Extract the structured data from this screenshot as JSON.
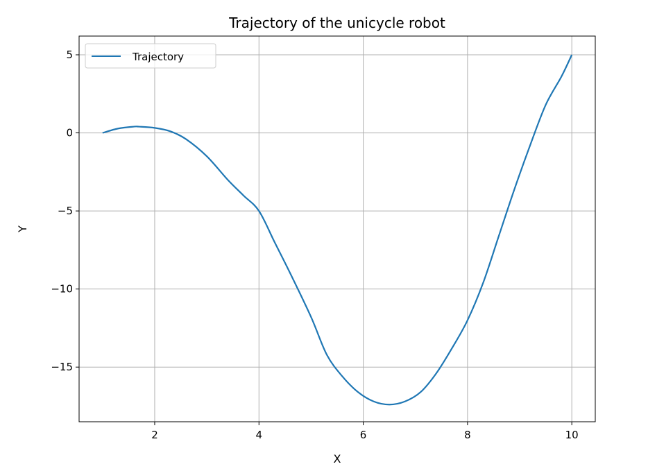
{
  "chart_data": {
    "type": "line",
    "title": "Trajectory of the unicycle robot",
    "xlabel": "X",
    "ylabel": "Y",
    "xlim": [
      0.55,
      10.45
    ],
    "ylim": [
      -18.5,
      6.2
    ],
    "xticks": [
      2,
      4,
      6,
      8,
      10
    ],
    "yticks": [
      5,
      0,
      -5,
      -10,
      -15
    ],
    "xtick_labels": [
      "2",
      "4",
      "6",
      "8",
      "10"
    ],
    "ytick_labels": [
      "5",
      "0",
      "−5",
      "−10",
      "−15"
    ],
    "grid": true,
    "legend_position": "top-left",
    "series": [
      {
        "name": "Trajectory",
        "color": "#1f77b4",
        "x": [
          1.0,
          1.3,
          1.6,
          1.7,
          2.0,
          2.3,
          2.6,
          3.0,
          3.4,
          3.7,
          4.0,
          4.3,
          4.6,
          5.0,
          5.3,
          5.6,
          5.9,
          6.2,
          6.5,
          6.8,
          7.1,
          7.4,
          7.7,
          8.0,
          8.3,
          8.6,
          8.9,
          9.2,
          9.5,
          9.8,
          10.0
        ],
        "y": [
          0.0,
          0.28,
          0.4,
          0.4,
          0.32,
          0.1,
          -0.4,
          -1.5,
          -3.0,
          -4.0,
          -5.0,
          -7.0,
          -9.0,
          -11.8,
          -14.2,
          -15.6,
          -16.6,
          -17.2,
          -17.4,
          -17.2,
          -16.6,
          -15.4,
          -13.8,
          -12.0,
          -9.6,
          -6.6,
          -3.6,
          -0.8,
          1.8,
          3.6,
          5.0
        ]
      }
    ]
  }
}
